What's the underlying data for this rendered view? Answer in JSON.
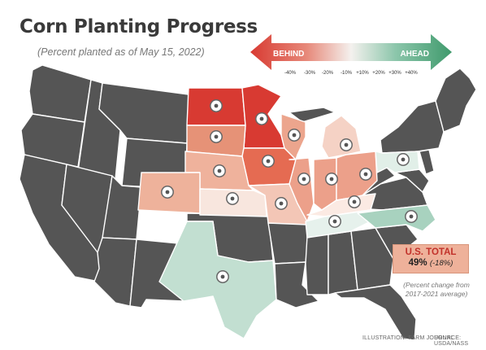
{
  "title": "Corn Planting Progress",
  "subtitle": "(Percent planted as of May 15, 2022)",
  "legend": {
    "behind_label": "BEHIND",
    "ahead_label": "AHEAD",
    "ticks": [
      "-40%",
      "-30%",
      "-20%",
      "-10%",
      "+10%",
      "+20%",
      "+30%",
      "+40%"
    ],
    "colors": {
      "behind": "#d83a32",
      "ahead": "#3f9a6c",
      "neutral": "#f4f1ee"
    }
  },
  "total": {
    "label": "U.S. TOTAL",
    "value": "49%",
    "change": "(-18%)"
  },
  "change_note_line1": "(Percent change from",
  "change_note_line2": "2017-2021 average)",
  "credits": {
    "illustration": "ILLUSTRATION: FARM JOURNAL",
    "source": "SOURCE: USDA/NASS"
  },
  "colors": {
    "non_reporting_state": "#555555",
    "state_border": "#ffffff",
    "marker_ring": "#666666"
  },
  "map_legend_scale": {
    "min": -40,
    "max": 40
  },
  "highlighted_states": [
    {
      "name": "North Dakota",
      "color": "#d83a32"
    },
    {
      "name": "Minnesota",
      "color": "#d83a32"
    },
    {
      "name": "South Dakota",
      "color": "#e69277"
    },
    {
      "name": "Iowa",
      "color": "#e56b52"
    },
    {
      "name": "Wisconsin",
      "color": "#eca58d"
    },
    {
      "name": "Nebraska",
      "color": "#efb29c"
    },
    {
      "name": "Colorado",
      "color": "#eeb29b"
    },
    {
      "name": "Kansas",
      "color": "#f8e6de"
    },
    {
      "name": "Missouri",
      "color": "#f3c6b6"
    },
    {
      "name": "Illinois",
      "color": "#eca08a"
    },
    {
      "name": "Indiana",
      "color": "#eca08a"
    },
    {
      "name": "Ohio",
      "color": "#eca08a"
    },
    {
      "name": "Michigan",
      "color": "#f5d2c5"
    },
    {
      "name": "Kentucky",
      "color": "#fbeae3"
    },
    {
      "name": "Tennessee",
      "color": "#e6f1ec"
    },
    {
      "name": "North Carolina",
      "color": "#a8d2bf"
    },
    {
      "name": "Pennsylvania",
      "color": "#e1efe8"
    },
    {
      "name": "Texas",
      "color": "#c2dfd1"
    }
  ]
}
